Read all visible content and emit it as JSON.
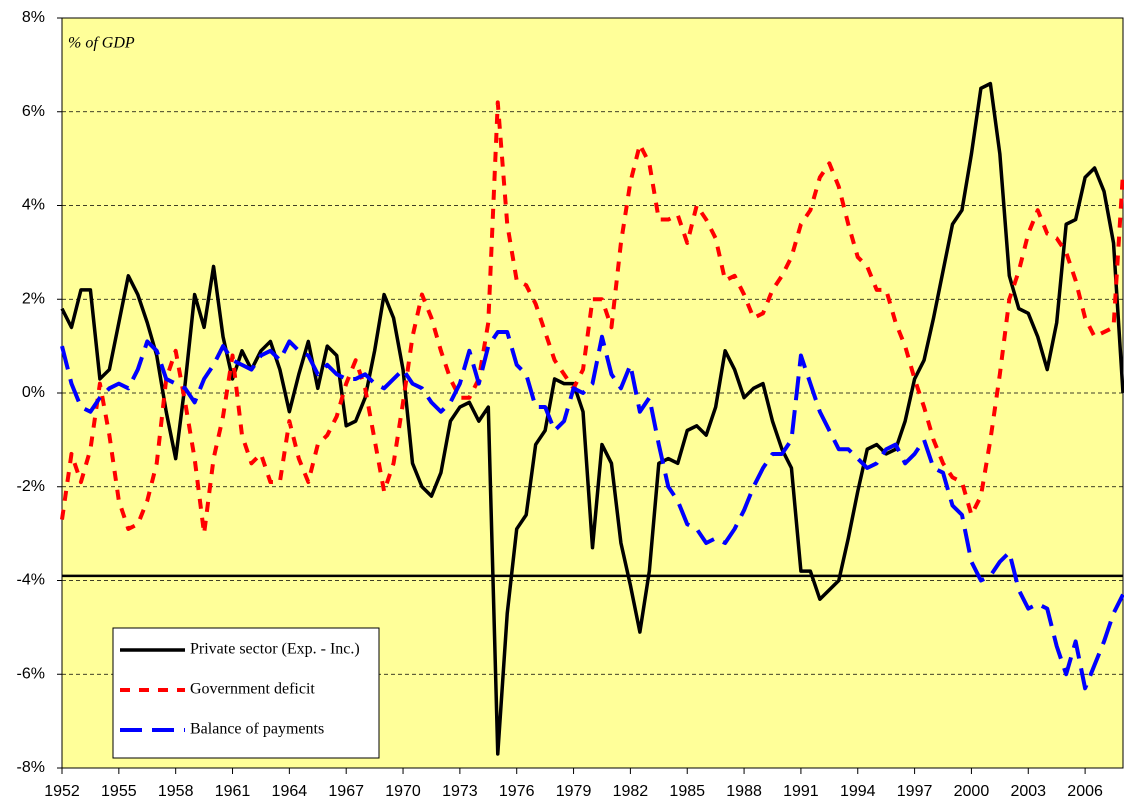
{
  "chart_data": {
    "type": "line",
    "annotation": "% of GDP",
    "x": [
      1952,
      1952.5,
      1953,
      1953.5,
      1954,
      1954.5,
      1955,
      1955.5,
      1956,
      1956.5,
      1957,
      1957.5,
      1958,
      1958.5,
      1959,
      1959.5,
      1960,
      1960.5,
      1961,
      1961.5,
      1962,
      1962.5,
      1963,
      1963.5,
      1964,
      1964.5,
      1965,
      1965.5,
      1966,
      1966.5,
      1967,
      1967.5,
      1968,
      1968.5,
      1969,
      1969.5,
      1970,
      1970.5,
      1971,
      1971.5,
      1972,
      1972.5,
      1973,
      1973.5,
      1974,
      1974.5,
      1975,
      1975.5,
      1976,
      1976.5,
      1977,
      1977.5,
      1978,
      1978.5,
      1979,
      1979.5,
      1980,
      1980.5,
      1981,
      1981.5,
      1982,
      1982.5,
      1983,
      1983.5,
      1984,
      1984.5,
      1985,
      1985.5,
      1986,
      1986.5,
      1987,
      1987.5,
      1988,
      1988.5,
      1989,
      1989.5,
      1990,
      1990.5,
      1991,
      1991.5,
      1992,
      1992.5,
      1993,
      1993.5,
      1994,
      1994.5,
      1995,
      1995.5,
      1996,
      1996.5,
      1997,
      1997.5,
      1998,
      1998.5,
      1999,
      1999.5,
      2000,
      2000.5,
      2001,
      2001.5,
      2002,
      2002.5,
      2003,
      2003.5,
      2004,
      2004.5,
      2005,
      2005.5,
      2006,
      2006.5,
      2007,
      2007.5,
      2008
    ],
    "series": [
      {
        "name": "Private sector (Exp. - Inc.)",
        "color": "#000000",
        "dash": "solid",
        "values": [
          1.8,
          1.4,
          2.2,
          2.2,
          0.3,
          0.5,
          1.5,
          2.5,
          2.1,
          1.5,
          0.8,
          -0.4,
          -1.4,
          0.2,
          2.1,
          1.4,
          2.7,
          1.2,
          0.3,
          0.9,
          0.5,
          0.9,
          1.1,
          0.5,
          -0.4,
          0.4,
          1.1,
          0.1,
          1.0,
          0.8,
          -0.7,
          -0.6,
          -0.1,
          0.9,
          2.1,
          1.6,
          0.5,
          -1.5,
          -2.0,
          -2.2,
          -1.7,
          -0.6,
          -0.3,
          -0.2,
          -0.6,
          -0.3,
          -7.7,
          -4.7,
          -2.9,
          -2.6,
          -1.1,
          -0.8,
          0.3,
          0.2,
          0.2,
          -0.4,
          -3.3,
          -1.1,
          -1.5,
          -3.2,
          -4.1,
          -5.1,
          -3.8,
          -1.5,
          -1.4,
          -1.5,
          -0.8,
          -0.7,
          -0.9,
          -0.3,
          0.9,
          0.5,
          -0.1,
          0.1,
          0.2,
          -0.6,
          -1.2,
          -1.6,
          -3.8,
          -3.8,
          -4.4,
          -4.2,
          -4.0,
          -3.1,
          -2.1,
          -1.2,
          -1.1,
          -1.3,
          -1.2,
          -0.6,
          0.3,
          0.7,
          1.6,
          2.6,
          3.6,
          3.9,
          5.1,
          6.5,
          6.6,
          5.1,
          2.5,
          1.8,
          1.7,
          1.2,
          0.5,
          1.5,
          3.6,
          3.7,
          4.6,
          4.8,
          4.3,
          3.2,
          0.0
        ]
      },
      {
        "name": "Government deficit",
        "color": "#ff0000",
        "dash": "short",
        "values": [
          -2.7,
          -1.3,
          -1.9,
          -1.2,
          0.2,
          -0.9,
          -2.3,
          -2.9,
          -2.8,
          -2.3,
          -1.5,
          0.3,
          0.9,
          -0.2,
          -1.4,
          -3.0,
          -1.4,
          -0.5,
          0.8,
          -0.9,
          -1.5,
          -1.3,
          -1.9,
          -1.9,
          -0.6,
          -1.4,
          -1.9,
          -1.1,
          -0.9,
          -0.5,
          0.2,
          0.7,
          0.1,
          -1.0,
          -2.1,
          -1.5,
          -0.2,
          1.2,
          2.1,
          1.6,
          0.9,
          0.3,
          -0.1,
          -0.1,
          0.3,
          1.5,
          6.2,
          3.6,
          2.4,
          2.3,
          1.9,
          1.3,
          0.7,
          0.4,
          0.1,
          0.5,
          2.0,
          2.0,
          1.4,
          3.2,
          4.5,
          5.3,
          4.9,
          3.7,
          3.7,
          3.8,
          3.2,
          4.0,
          3.7,
          3.3,
          2.4,
          2.5,
          2.1,
          1.6,
          1.7,
          2.2,
          2.5,
          2.9,
          3.6,
          3.9,
          4.6,
          4.9,
          4.4,
          3.6,
          2.9,
          2.7,
          2.2,
          2.2,
          1.5,
          1.0,
          0.3,
          -0.3,
          -1.0,
          -1.5,
          -1.8,
          -1.9,
          -2.6,
          -2.2,
          -1.0,
          0.4,
          2.0,
          2.6,
          3.4,
          3.9,
          3.4,
          3.3,
          3.0,
          2.4,
          1.6,
          1.2,
          1.3,
          1.4,
          4.7
        ]
      },
      {
        "name": "Balance of payments",
        "color": "#0000ff",
        "dash": "long",
        "values": [
          1.0,
          0.2,
          -0.3,
          -0.4,
          -0.1,
          0.1,
          0.2,
          0.1,
          0.5,
          1.1,
          0.9,
          0.3,
          0.2,
          0.1,
          -0.2,
          0.3,
          0.6,
          1.0,
          0.7,
          0.6,
          0.5,
          0.8,
          0.9,
          0.7,
          1.1,
          0.9,
          0.8,
          0.4,
          0.6,
          0.4,
          0.3,
          0.3,
          0.4,
          0.2,
          0.1,
          0.3,
          0.5,
          0.2,
          0.1,
          -0.2,
          -0.4,
          -0.2,
          0.2,
          0.9,
          0.2,
          1.0,
          1.3,
          1.3,
          0.6,
          0.4,
          -0.3,
          -0.3,
          -0.8,
          -0.6,
          0.1,
          0.0,
          0.2,
          1.2,
          0.4,
          0.1,
          0.6,
          -0.4,
          -0.1,
          -1.1,
          -2.0,
          -2.3,
          -2.8,
          -2.9,
          -3.2,
          -3.1,
          -3.2,
          -2.9,
          -2.5,
          -2.0,
          -1.6,
          -1.3,
          -1.3,
          -1.0,
          0.8,
          0.2,
          -0.4,
          -0.8,
          -1.2,
          -1.2,
          -1.4,
          -1.6,
          -1.5,
          -1.2,
          -1.1,
          -1.5,
          -1.3,
          -1.0,
          -1.6,
          -1.7,
          -2.4,
          -2.6,
          -3.6,
          -4.0,
          -3.9,
          -3.6,
          -3.4,
          -4.2,
          -4.6,
          -4.5,
          -4.6,
          -5.4,
          -6.0,
          -5.3,
          -6.3,
          -5.8,
          -5.3,
          -4.7,
          -4.3
        ]
      }
    ],
    "reference_line": -3.9,
    "xlim": [
      1952,
      2008
    ],
    "xticks": [
      1952,
      1955,
      1958,
      1961,
      1964,
      1967,
      1970,
      1973,
      1976,
      1979,
      1982,
      1985,
      1988,
      1991,
      1994,
      1997,
      2000,
      2003,
      2006
    ],
    "ylim": [
      -8,
      8
    ],
    "yticks": [
      {
        "value": -8,
        "label": "-8%"
      },
      {
        "value": -6,
        "label": "-6%"
      },
      {
        "value": -4,
        "label": "-4%"
      },
      {
        "value": -2,
        "label": "-2%"
      },
      {
        "value": 0,
        "label": "0%"
      },
      {
        "value": 2,
        "label": "2%"
      },
      {
        "value": 4,
        "label": "4%"
      },
      {
        "value": 6,
        "label": "6%"
      },
      {
        "value": 8,
        "label": "8%"
      }
    ],
    "grid": true,
    "legend": "lower-left",
    "background": "#ffff99"
  }
}
